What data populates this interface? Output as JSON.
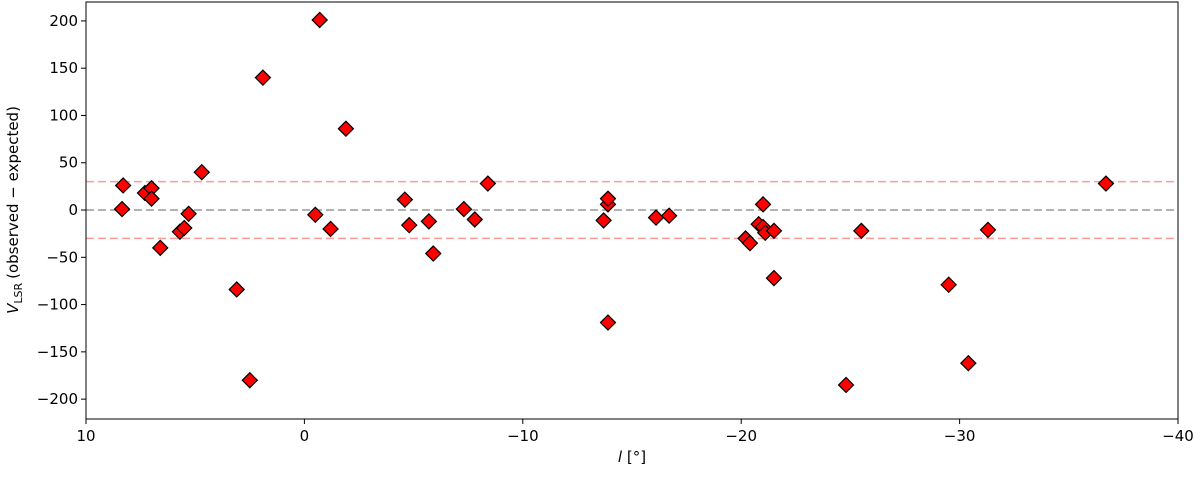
{
  "chart_data": {
    "type": "scatter",
    "x_label": {
      "symbol": "l",
      "unit": "[°]"
    },
    "y_label": {
      "symbol": "V",
      "subscript": "LSR",
      "text": "(observed − expected)"
    },
    "x": [
      8.3,
      8.35,
      7.3,
      7.0,
      7.0,
      6.6,
      5.7,
      5.5,
      5.3,
      4.7,
      3.1,
      2.5,
      1.9,
      -0.5,
      -0.7,
      -1.2,
      -1.9,
      -4.6,
      -4.8,
      -5.7,
      -5.9,
      -7.3,
      -7.8,
      -8.4,
      -13.7,
      -13.9,
      -13.9,
      -13.9,
      -16.1,
      -16.7,
      -20.2,
      -20.4,
      -20.8,
      -21.0,
      -21.0,
      -21.1,
      -21.5,
      -21.5,
      -24.8,
      -25.5,
      -29.5,
      -30.4,
      -31.3,
      -36.7
    ],
    "values": [
      26,
      1,
      18,
      23,
      12,
      -40,
      -23,
      -19,
      -4,
      40,
      -84,
      -180,
      140,
      -5,
      201,
      -20,
      86,
      11,
      -16,
      -12,
      -46,
      1,
      -10,
      28,
      -11,
      -119,
      6,
      12,
      -8,
      -6,
      -30,
      -35,
      -15,
      6,
      -18,
      -24,
      -22,
      -72,
      -185,
      -22,
      -79,
      -162,
      -21,
      28
    ],
    "color": "#ff0000",
    "edge_color": "#000000",
    "marker": "diamond",
    "xlim": [
      10,
      -40
    ],
    "xticks": [
      10,
      0,
      {
        "value": -10,
        "label": "−10"
      },
      {
        "value": -20,
        "label": "−20"
      },
      {
        "value": -30,
        "label": "−30"
      },
      {
        "value": -40,
        "label": "−40"
      }
    ],
    "ylim": [
      -221,
      220
    ],
    "yticks": [
      {
        "value": -200,
        "label": "−200"
      },
      {
        "value": -150,
        "label": "−150"
      },
      {
        "value": -100,
        "label": "−100"
      },
      {
        "value": -50,
        "label": "−50"
      },
      0,
      50,
      100,
      150,
      200
    ],
    "hlines": [
      {
        "value": 30,
        "color": "#ff9a9a"
      },
      {
        "value": 0,
        "color": "#999999"
      },
      {
        "value": -30,
        "color": "#ff9a9a"
      }
    ]
  }
}
